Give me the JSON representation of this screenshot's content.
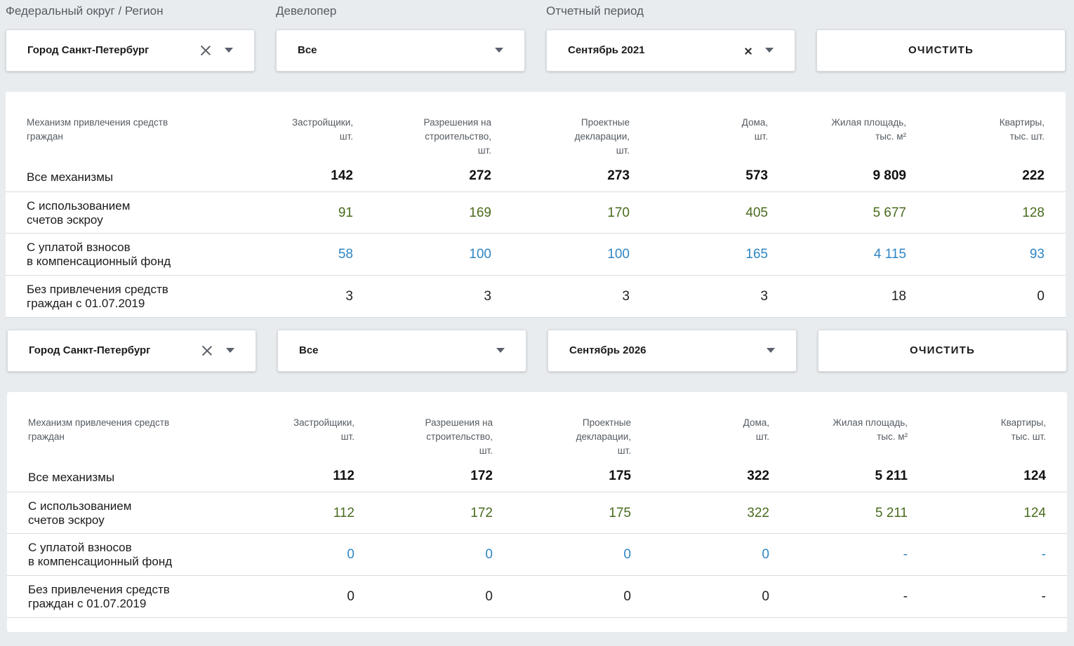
{
  "filters": {
    "region_label": "Федеральный округ / Регион",
    "developer_label": "Девелопер",
    "period_label": "Отчетный период"
  },
  "panels": [
    {
      "region_value": "Город Санкт-Петербург",
      "developer_value": "Все",
      "period_value": "Сентябрь 2021",
      "clear_label": "ОЧИСТИТЬ",
      "table": {
        "first_col_header": [
          "Механизм привлечения средств",
          "граждан"
        ],
        "columns": [
          [
            "Застройщики,",
            "шт."
          ],
          [
            "Разрешения на",
            "строительство,",
            "шт."
          ],
          [
            "Проектные",
            "декларации,",
            "шт."
          ],
          [
            "Дома,",
            "шт."
          ],
          [
            "Жилая площадь,",
            "тыс. м²"
          ],
          [
            "Квартиры,",
            "тыс. шт."
          ]
        ],
        "rows": [
          {
            "label": [
              "Все механизмы"
            ],
            "style": "bold",
            "values": [
              "142",
              "272",
              "273",
              "573",
              "9 809",
              "222"
            ]
          },
          {
            "label": [
              "С использованием",
              "счетов эскроу"
            ],
            "style": "green",
            "values": [
              "91",
              "169",
              "170",
              "405",
              "5 677",
              "128"
            ]
          },
          {
            "label": [
              "С уплатой взносов",
              "в компенсационный фонд"
            ],
            "style": "blue",
            "values": [
              "58",
              "100",
              "100",
              "165",
              "4 115",
              "93"
            ]
          },
          {
            "label": [
              "Без привлечения средств",
              "граждан с 01.07.2019"
            ],
            "style": "plain",
            "values": [
              "3",
              "3",
              "3",
              "3",
              "18",
              "0"
            ]
          }
        ]
      }
    },
    {
      "region_value": "Город Санкт-Петербург",
      "developer_value": "Все",
      "period_value": "Сентябрь 2026",
      "clear_label": "ОЧИСТИТЬ",
      "table": {
        "first_col_header": [
          "Механизм привлечения средств",
          "граждан"
        ],
        "columns": [
          [
            "Застройщики,",
            "шт."
          ],
          [
            "Разрешения на",
            "строительство,",
            "шт."
          ],
          [
            "Проектные",
            "декларации,",
            "шт."
          ],
          [
            "Дома,",
            "шт."
          ],
          [
            "Жилая площадь,",
            "тыс. м²"
          ],
          [
            "Квартиры,",
            "тыс. шт."
          ]
        ],
        "rows": [
          {
            "label": [
              "Все механизмы"
            ],
            "style": "bold",
            "values": [
              "112",
              "172",
              "175",
              "322",
              "5 211",
              "124"
            ]
          },
          {
            "label": [
              "С использованием",
              "счетов эскроу"
            ],
            "style": "green",
            "values": [
              "112",
              "172",
              "175",
              "322",
              "5 211",
              "124"
            ]
          },
          {
            "label": [
              "С уплатой взносов",
              "в компенсационный фонд"
            ],
            "style": "blue",
            "values": [
              "0",
              "0",
              "0",
              "0",
              "-",
              "-"
            ]
          },
          {
            "label": [
              "Без привлечения средств",
              "граждан с 01.07.2019"
            ],
            "style": "plain",
            "values": [
              "0",
              "0",
              "0",
              "0",
              "-",
              "-"
            ]
          }
        ]
      }
    }
  ]
}
